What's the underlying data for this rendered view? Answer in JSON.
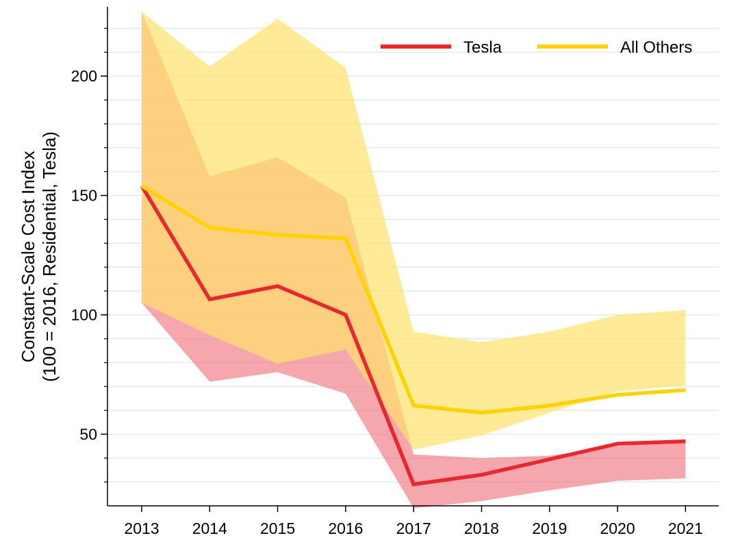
{
  "chart_data": {
    "type": "line",
    "title": "",
    "xlabel": "",
    "ylabel_line1": "Constant-Scale Cost Index",
    "ylabel_line2": "(100 = 2016, Residential, Tesla)",
    "x": [
      2013,
      2014,
      2015,
      2016,
      2017,
      2018,
      2019,
      2020,
      2021
    ],
    "ylim": [
      20,
      229
    ],
    "yticks": [
      50,
      100,
      150,
      200
    ],
    "series": [
      {
        "name": "Tesla",
        "color": "#e8282d",
        "band_color": "#f0707a",
        "values": [
          154,
          106.5,
          112,
          100,
          29,
          33,
          39.5,
          46,
          47
        ],
        "lower": [
          105,
          72,
          76,
          67,
          19,
          22,
          26.5,
          30.5,
          31.5
        ],
        "upper": [
          227,
          158,
          166,
          149,
          41.5,
          40,
          41,
          45,
          47
        ]
      },
      {
        "name": "All Others",
        "color": "#ffd200",
        "band_color": "#ffe36b",
        "values": [
          154,
          136.5,
          133.5,
          132,
          62,
          59,
          62,
          66.5,
          68.5
        ],
        "lower": [
          105,
          91.5,
          79.5,
          85.5,
          43.5,
          49.5,
          59,
          68,
          70.5
        ],
        "upper": [
          227,
          204,
          224,
          203.5,
          93,
          88.5,
          93,
          100,
          102
        ]
      }
    ],
    "legend_position": "top-right",
    "grid": "horizontal"
  }
}
